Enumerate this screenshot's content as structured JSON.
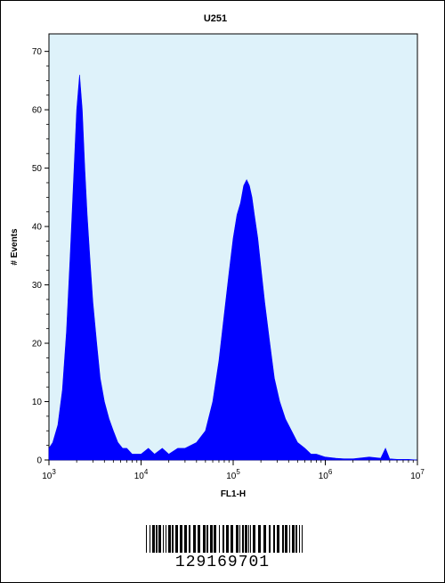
{
  "chart_data": {
    "type": "area",
    "title": "U251",
    "xlabel": "FL1-H",
    "ylabel": "# Events",
    "x_scale": "log",
    "xlim": [
      1000,
      10000000
    ],
    "ylim": [
      0,
      73
    ],
    "grid": false,
    "x_ticks": [
      {
        "value": 1000,
        "base": "10",
        "exp": "3"
      },
      {
        "value": 10000,
        "base": "10",
        "exp": "4"
      },
      {
        "value": 100000,
        "base": "10",
        "exp": "5"
      },
      {
        "value": 1000000,
        "base": "10",
        "exp": "6"
      },
      {
        "value": 10000000,
        "base": "10",
        "exp": "7"
      }
    ],
    "y_ticks": [
      0,
      10,
      20,
      30,
      40,
      50,
      60,
      70
    ],
    "fill_color": "#0000ff",
    "plot_background": "#def2fa",
    "series": [
      {
        "x": [
          1000,
          1100,
          1250,
          1400,
          1550,
          1700,
          1850,
          2000,
          2150,
          2300,
          2450,
          2600,
          2800,
          3000,
          3300,
          3600,
          4000,
          4500,
          5000,
          5600,
          6300,
          7000,
          8000,
          9000,
          10000,
          12000,
          14000,
          17000,
          20000,
          25000,
          30000,
          40000,
          50000,
          60000,
          70000,
          80000,
          90000,
          100000,
          110000,
          120000,
          130000,
          140000,
          150000,
          160000,
          170000,
          185000,
          200000,
          220000,
          250000,
          280000,
          320000,
          370000,
          430000,
          500000,
          600000,
          700000,
          800000,
          1000000,
          1300000,
          1600000,
          2000000,
          3000000,
          4000000,
          4500000,
          5000000,
          6000000,
          8000000,
          10000000
        ],
        "y": [
          2,
          3,
          6,
          12,
          22,
          35,
          48,
          60,
          66,
          60,
          50,
          42,
          34,
          27,
          20,
          14,
          10,
          7,
          5,
          3,
          2,
          2,
          1,
          1,
          1,
          2,
          1,
          2,
          1,
          2,
          2,
          3,
          5,
          10,
          17,
          25,
          32,
          38,
          42,
          44,
          47,
          48,
          47,
          45,
          42,
          38,
          33,
          27,
          20,
          14,
          10,
          7,
          5,
          3,
          2,
          1,
          1,
          0.5,
          0.3,
          0.2,
          0.2,
          0.5,
          0.3,
          2,
          0.2,
          0.1,
          0.1,
          0
        ]
      }
    ]
  },
  "barcode": {
    "number": "129169701"
  }
}
